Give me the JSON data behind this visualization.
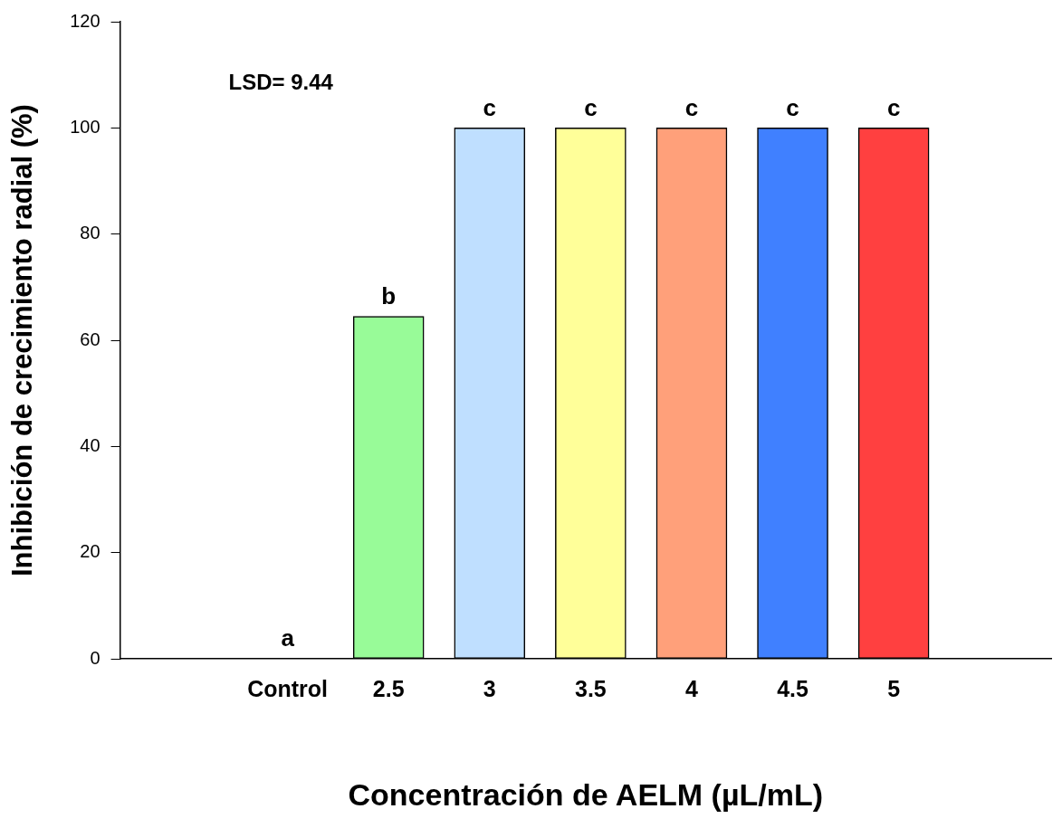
{
  "chart_data": {
    "type": "bar",
    "xlabel": "Concentración de AELM (µL/mL)",
    "ylabel": "Inhibición de crecimiento radial (%)",
    "categories": [
      "Control",
      "2.5",
      "3",
      "3.5",
      "4",
      "4.5",
      "5"
    ],
    "values": [
      0,
      64.5,
      100,
      100,
      100,
      100,
      100
    ],
    "colors": [
      "#ffffff",
      "#98fb98",
      "#bfdfff",
      "#ffff99",
      "#ffa07a",
      "#4080ff",
      "#ff4040"
    ],
    "ylim": [
      0,
      120
    ],
    "yticks": [
      0,
      20,
      40,
      60,
      80,
      100,
      120
    ],
    "grid": false,
    "legend": false,
    "annotations": [
      "LSD= 9.44",
      {
        "text": "a",
        "x": "Control",
        "y": 0
      },
      {
        "text": "b",
        "x": "2.5",
        "y": 64.5
      },
      {
        "text": "c",
        "x": "3",
        "y": 100
      },
      {
        "text": "c",
        "x": "3.5",
        "y": 100
      },
      {
        "text": "c",
        "x": "4",
        "y": 100
      },
      {
        "text": "c",
        "x": "4.5",
        "y": 100
      },
      {
        "text": "c",
        "x": "5",
        "y": 100
      }
    ]
  }
}
